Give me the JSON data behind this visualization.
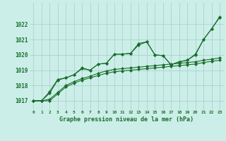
{
  "xlabel": "Graphe pression niveau de la mer (hPa)",
  "background_color": "#cceee8",
  "grid_color": "#a8d4cc",
  "line_color": "#1a6e2e",
  "xlim": [
    -0.5,
    23.5
  ],
  "ylim": [
    1016.4,
    1023.4
  ],
  "yticks": [
    1017,
    1018,
    1019,
    1020,
    1021,
    1022
  ],
  "xticks": [
    0,
    1,
    2,
    3,
    4,
    5,
    6,
    7,
    8,
    9,
    10,
    11,
    12,
    13,
    14,
    15,
    16,
    17,
    18,
    19,
    20,
    21,
    22,
    23
  ],
  "line1_x": [
    0,
    1,
    2,
    3,
    4,
    5,
    6,
    7,
    8,
    9,
    10,
    11,
    12,
    13,
    14,
    15,
    16,
    17,
    18,
    19,
    20,
    21,
    22,
    23
  ],
  "line1_y": [
    1017.0,
    1017.0,
    1017.5,
    1018.35,
    1018.5,
    1018.7,
    1019.15,
    1019.0,
    1019.4,
    1019.45,
    1020.05,
    1020.05,
    1020.1,
    1020.75,
    1020.85,
    1020.0,
    1019.95,
    1019.35,
    1019.55,
    1019.65,
    1020.05,
    1021.0,
    1021.7,
    1022.45
  ],
  "line2_x": [
    0,
    1,
    2,
    3,
    4,
    5,
    6,
    7,
    8,
    9,
    10,
    11,
    12,
    13,
    14,
    15,
    16,
    17,
    18,
    19,
    20,
    21,
    22,
    23
  ],
  "line2_y": [
    1017.0,
    1017.0,
    1017.1,
    1017.55,
    1018.0,
    1018.25,
    1018.45,
    1018.6,
    1018.8,
    1018.95,
    1019.05,
    1019.1,
    1019.15,
    1019.2,
    1019.25,
    1019.3,
    1019.35,
    1019.4,
    1019.45,
    1019.5,
    1019.55,
    1019.65,
    1019.72,
    1019.8
  ],
  "line3_x": [
    0,
    1,
    2,
    3,
    4,
    5,
    6,
    7,
    8,
    9,
    10,
    11,
    12,
    13,
    14,
    15,
    16,
    17,
    18,
    19,
    20,
    21,
    22,
    23
  ],
  "line3_y": [
    1017.0,
    1017.0,
    1017.0,
    1017.45,
    1017.9,
    1018.15,
    1018.35,
    1018.5,
    1018.65,
    1018.8,
    1018.9,
    1018.95,
    1019.0,
    1019.05,
    1019.1,
    1019.15,
    1019.2,
    1019.25,
    1019.3,
    1019.35,
    1019.4,
    1019.5,
    1019.58,
    1019.65
  ],
  "line4_x": [
    0,
    1,
    2,
    3,
    4,
    5,
    6,
    7,
    8,
    9,
    10,
    11,
    12,
    13,
    14,
    15,
    16,
    17,
    18,
    19,
    20,
    21,
    22,
    23
  ],
  "line4_y": [
    1017.0,
    1017.0,
    1017.6,
    1018.4,
    1018.5,
    1018.7,
    1019.1,
    1019.0,
    1019.4,
    1019.45,
    1020.05,
    1020.05,
    1020.1,
    1020.65,
    1020.85,
    1020.0,
    1019.95,
    1019.35,
    1019.55,
    1019.65,
    1020.0,
    1021.0,
    1021.7,
    1022.5
  ]
}
